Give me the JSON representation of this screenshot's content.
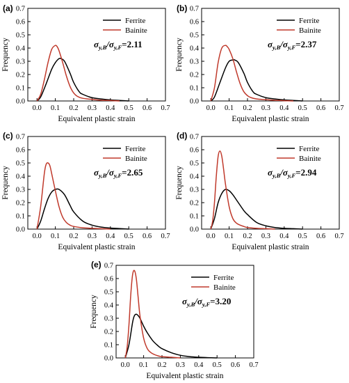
{
  "figure": {
    "ratio_template": "σy,B/σy,F",
    "xlabel": "Equivalent plastic strain",
    "ylabel": "Frequency",
    "colors": {
      "ferrite": "#000000",
      "bainite": "#c0392b"
    }
  },
  "chart_data": [
    {
      "type": "line",
      "panel_label": "(a)",
      "ratio_value": "=2.11",
      "xlim": [
        -0.05,
        0.7
      ],
      "ylim": [
        0,
        0.7
      ],
      "xticks": [
        0.0,
        0.1,
        0.2,
        0.3,
        0.4,
        0.5,
        0.6,
        0.7
      ],
      "yticks": [
        0.0,
        0.1,
        0.2,
        0.3,
        0.4,
        0.5,
        0.6,
        0.7
      ],
      "legend_position": "top-right",
      "series": [
        {
          "name": "Ferrite",
          "color": "#000000",
          "x": [
            0.0,
            0.02,
            0.05,
            0.08,
            0.1,
            0.12,
            0.13,
            0.15,
            0.18,
            0.2,
            0.23,
            0.25,
            0.3,
            0.35,
            0.4,
            0.45,
            0.5
          ],
          "y": [
            0.0,
            0.03,
            0.13,
            0.24,
            0.29,
            0.32,
            0.32,
            0.3,
            0.21,
            0.14,
            0.07,
            0.05,
            0.025,
            0.015,
            0.008,
            0.004,
            0.0
          ]
        },
        {
          "name": "Bainite",
          "color": "#c0392b",
          "x": [
            0.0,
            0.02,
            0.04,
            0.06,
            0.08,
            0.1,
            0.11,
            0.12,
            0.14,
            0.16,
            0.18,
            0.2,
            0.22,
            0.25,
            0.3,
            0.35,
            0.4,
            0.45
          ],
          "y": [
            0.0,
            0.05,
            0.16,
            0.29,
            0.39,
            0.42,
            0.41,
            0.38,
            0.29,
            0.19,
            0.11,
            0.06,
            0.035,
            0.02,
            0.012,
            0.006,
            0.003,
            0.0
          ]
        }
      ]
    },
    {
      "type": "line",
      "panel_label": "(b)",
      "ratio_value": "=2.37",
      "xlim": [
        -0.05,
        0.7
      ],
      "ylim": [
        0,
        0.7
      ],
      "xticks": [
        0.0,
        0.1,
        0.2,
        0.3,
        0.4,
        0.5,
        0.6,
        0.7
      ],
      "yticks": [
        0.0,
        0.1,
        0.2,
        0.3,
        0.4,
        0.5,
        0.6,
        0.7
      ],
      "legend_position": "top-right",
      "series": [
        {
          "name": "Ferrite",
          "color": "#000000",
          "x": [
            0.0,
            0.02,
            0.05,
            0.08,
            0.1,
            0.12,
            0.13,
            0.15,
            0.18,
            0.2,
            0.23,
            0.25,
            0.3,
            0.35,
            0.4,
            0.45,
            0.5
          ],
          "y": [
            0.0,
            0.03,
            0.14,
            0.25,
            0.3,
            0.31,
            0.31,
            0.29,
            0.21,
            0.14,
            0.07,
            0.05,
            0.025,
            0.015,
            0.008,
            0.004,
            0.0
          ]
        },
        {
          "name": "Bainite",
          "color": "#c0392b",
          "x": [
            0.0,
            0.02,
            0.04,
            0.06,
            0.08,
            0.09,
            0.1,
            0.12,
            0.14,
            0.16,
            0.18,
            0.2,
            0.22,
            0.25,
            0.3,
            0.35,
            0.4,
            0.45
          ],
          "y": [
            0.0,
            0.1,
            0.29,
            0.4,
            0.42,
            0.41,
            0.39,
            0.32,
            0.22,
            0.13,
            0.07,
            0.04,
            0.025,
            0.015,
            0.01,
            0.005,
            0.002,
            0.0
          ]
        }
      ]
    },
    {
      "type": "line",
      "panel_label": "(c)",
      "ratio_value": "=2.65",
      "xlim": [
        -0.05,
        0.7
      ],
      "ylim": [
        0,
        0.7
      ],
      "xticks": [
        0.0,
        0.1,
        0.2,
        0.3,
        0.4,
        0.5,
        0.6,
        0.7
      ],
      "yticks": [
        0.0,
        0.1,
        0.2,
        0.3,
        0.4,
        0.5,
        0.6,
        0.7
      ],
      "legend_position": "top-right",
      "series": [
        {
          "name": "Ferrite",
          "color": "#000000",
          "x": [
            0.0,
            0.02,
            0.04,
            0.06,
            0.08,
            0.1,
            0.12,
            0.15,
            0.18,
            0.2,
            0.25,
            0.3,
            0.35,
            0.4,
            0.45,
            0.5
          ],
          "y": [
            0.0,
            0.06,
            0.15,
            0.23,
            0.28,
            0.3,
            0.3,
            0.26,
            0.18,
            0.13,
            0.06,
            0.03,
            0.015,
            0.008,
            0.004,
            0.0
          ]
        },
        {
          "name": "Bainite",
          "color": "#c0392b",
          "x": [
            0.0,
            0.02,
            0.04,
            0.05,
            0.06,
            0.07,
            0.08,
            0.1,
            0.12,
            0.14,
            0.16,
            0.18,
            0.2,
            0.25,
            0.3,
            0.35,
            0.4
          ],
          "y": [
            0.0,
            0.17,
            0.42,
            0.49,
            0.5,
            0.48,
            0.42,
            0.29,
            0.17,
            0.09,
            0.05,
            0.03,
            0.02,
            0.01,
            0.006,
            0.003,
            0.0
          ]
        }
      ]
    },
    {
      "type": "line",
      "panel_label": "(d)",
      "ratio_value": "=2.94",
      "xlim": [
        -0.05,
        0.7
      ],
      "ylim": [
        0,
        0.7
      ],
      "xticks": [
        0.0,
        0.1,
        0.2,
        0.3,
        0.4,
        0.5,
        0.6,
        0.7
      ],
      "yticks": [
        0.0,
        0.1,
        0.2,
        0.3,
        0.4,
        0.5,
        0.6,
        0.7
      ],
      "legend_position": "top-right",
      "series": [
        {
          "name": "Ferrite",
          "color": "#000000",
          "x": [
            0.0,
            0.02,
            0.04,
            0.06,
            0.08,
            0.1,
            0.12,
            0.15,
            0.18,
            0.2,
            0.25,
            0.3,
            0.35,
            0.4,
            0.45,
            0.5
          ],
          "y": [
            0.0,
            0.08,
            0.2,
            0.27,
            0.3,
            0.29,
            0.26,
            0.2,
            0.14,
            0.11,
            0.05,
            0.025,
            0.012,
            0.006,
            0.003,
            0.0
          ]
        },
        {
          "name": "Bainite",
          "color": "#c0392b",
          "x": [
            0.0,
            0.01,
            0.02,
            0.03,
            0.04,
            0.05,
            0.06,
            0.07,
            0.08,
            0.1,
            0.12,
            0.14,
            0.16,
            0.18,
            0.2,
            0.25,
            0.3,
            0.35
          ],
          "y": [
            0.0,
            0.06,
            0.2,
            0.4,
            0.55,
            0.59,
            0.55,
            0.45,
            0.34,
            0.17,
            0.08,
            0.045,
            0.03,
            0.02,
            0.012,
            0.006,
            0.003,
            0.0
          ]
        }
      ]
    },
    {
      "type": "line",
      "panel_label": "(e)",
      "ratio_value": "=3.20",
      "xlim": [
        -0.05,
        0.7
      ],
      "ylim": [
        0,
        0.7
      ],
      "xticks": [
        0.0,
        0.1,
        0.2,
        0.3,
        0.4,
        0.5,
        0.6,
        0.7
      ],
      "yticks": [
        0.0,
        0.1,
        0.2,
        0.3,
        0.4,
        0.5,
        0.6,
        0.7
      ],
      "legend_position": "top-right",
      "series": [
        {
          "name": "Ferrite",
          "color": "#000000",
          "x": [
            0.0,
            0.02,
            0.04,
            0.05,
            0.06,
            0.07,
            0.08,
            0.1,
            0.12,
            0.15,
            0.18,
            0.2,
            0.25,
            0.3,
            0.35,
            0.4,
            0.45,
            0.5
          ],
          "y": [
            0.0,
            0.1,
            0.27,
            0.32,
            0.33,
            0.32,
            0.3,
            0.24,
            0.19,
            0.13,
            0.09,
            0.07,
            0.04,
            0.02,
            0.01,
            0.005,
            0.002,
            0.0
          ]
        },
        {
          "name": "Bainite",
          "color": "#c0392b",
          "x": [
            0.0,
            0.01,
            0.02,
            0.03,
            0.04,
            0.05,
            0.06,
            0.07,
            0.08,
            0.1,
            0.12,
            0.14,
            0.16,
            0.18,
            0.2,
            0.25,
            0.3
          ],
          "y": [
            0.0,
            0.08,
            0.25,
            0.48,
            0.63,
            0.66,
            0.6,
            0.46,
            0.32,
            0.15,
            0.07,
            0.04,
            0.025,
            0.015,
            0.01,
            0.005,
            0.0
          ]
        }
      ]
    }
  ]
}
